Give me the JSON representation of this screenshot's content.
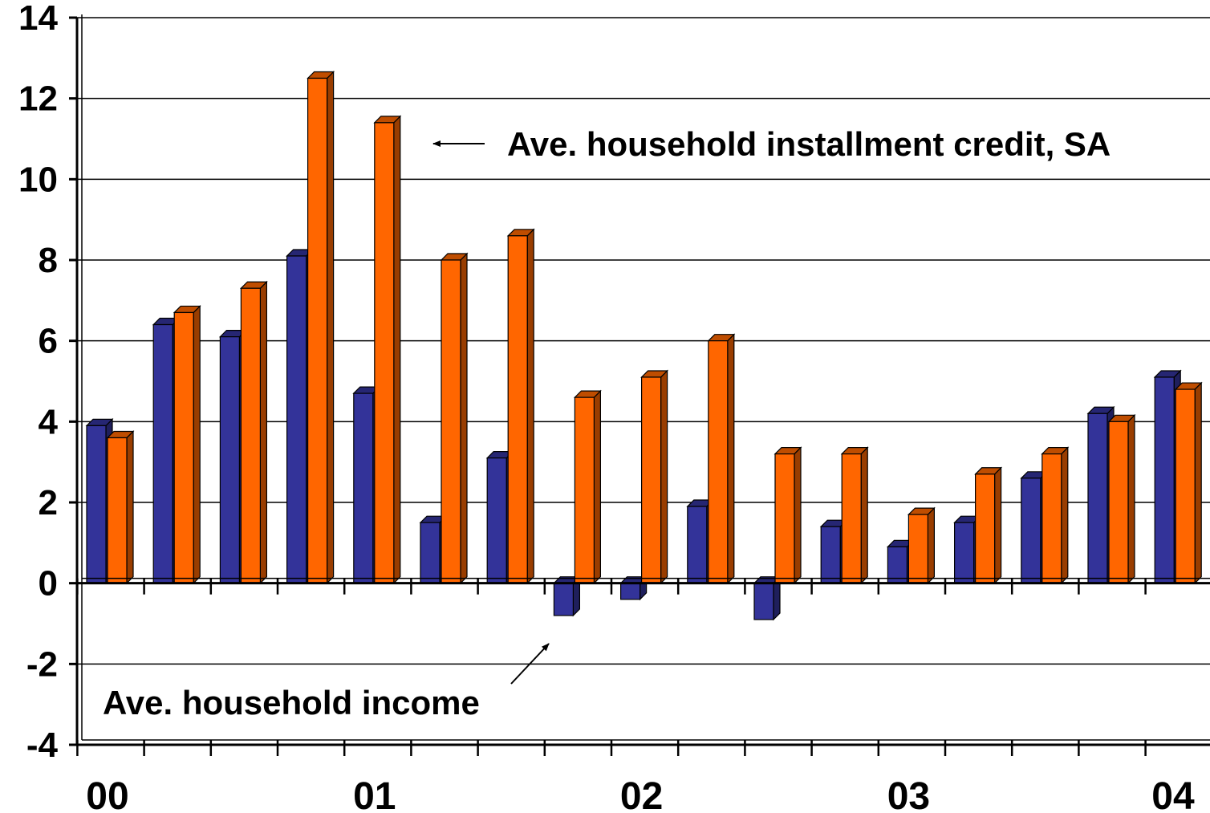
{
  "chart_data": {
    "type": "bar",
    "title": "",
    "xlabel": "",
    "ylabel": "",
    "ylim": [
      -4,
      14
    ],
    "yticks": [
      "14",
      "12",
      "10",
      "8",
      "6",
      "4",
      "2",
      "0",
      "-2",
      "-4"
    ],
    "ytick_values": [
      14,
      12,
      10,
      8,
      6,
      4,
      2,
      0,
      -2,
      -4
    ],
    "x_labels": [
      "00",
      "01",
      "02",
      "03",
      "04"
    ],
    "x_label_positions": [
      0,
      4,
      8,
      12,
      16
    ],
    "grid": true,
    "legend": "none",
    "categories": [
      "00 Q1",
      "00 Q2",
      "00 Q3",
      "00 Q4",
      "01 Q1",
      "01 Q2",
      "01 Q3",
      "01 Q4",
      "02 Q1",
      "02 Q2",
      "02 Q3",
      "02 Q4",
      "03 Q1",
      "03 Q2",
      "03 Q3",
      "03 Q4",
      "04 Q1"
    ],
    "series": [
      {
        "color": "#333399",
        "values": [
          3.9,
          6.4,
          6.1,
          8.1,
          4.7,
          1.5,
          3.1,
          -0.8,
          -0.4,
          1.9,
          -0.9,
          1.4,
          0.9,
          1.5,
          2.6,
          4.2,
          5.1
        ]
      },
      {
        "color": "#FF6600",
        "values": [
          3.6,
          6.7,
          7.3,
          12.5,
          11.4,
          8.0,
          8.6,
          4.6,
          5.1,
          6.0,
          3.2,
          3.2,
          1.7,
          2.7,
          3.2,
          4.0,
          4.8
        ]
      }
    ],
    "annotations": [
      {
        "name": "credit-annotation",
        "text": "Ave. household installment credit, SA"
      },
      {
        "name": "income-annotation",
        "text": "Ave. household income"
      }
    ]
  }
}
